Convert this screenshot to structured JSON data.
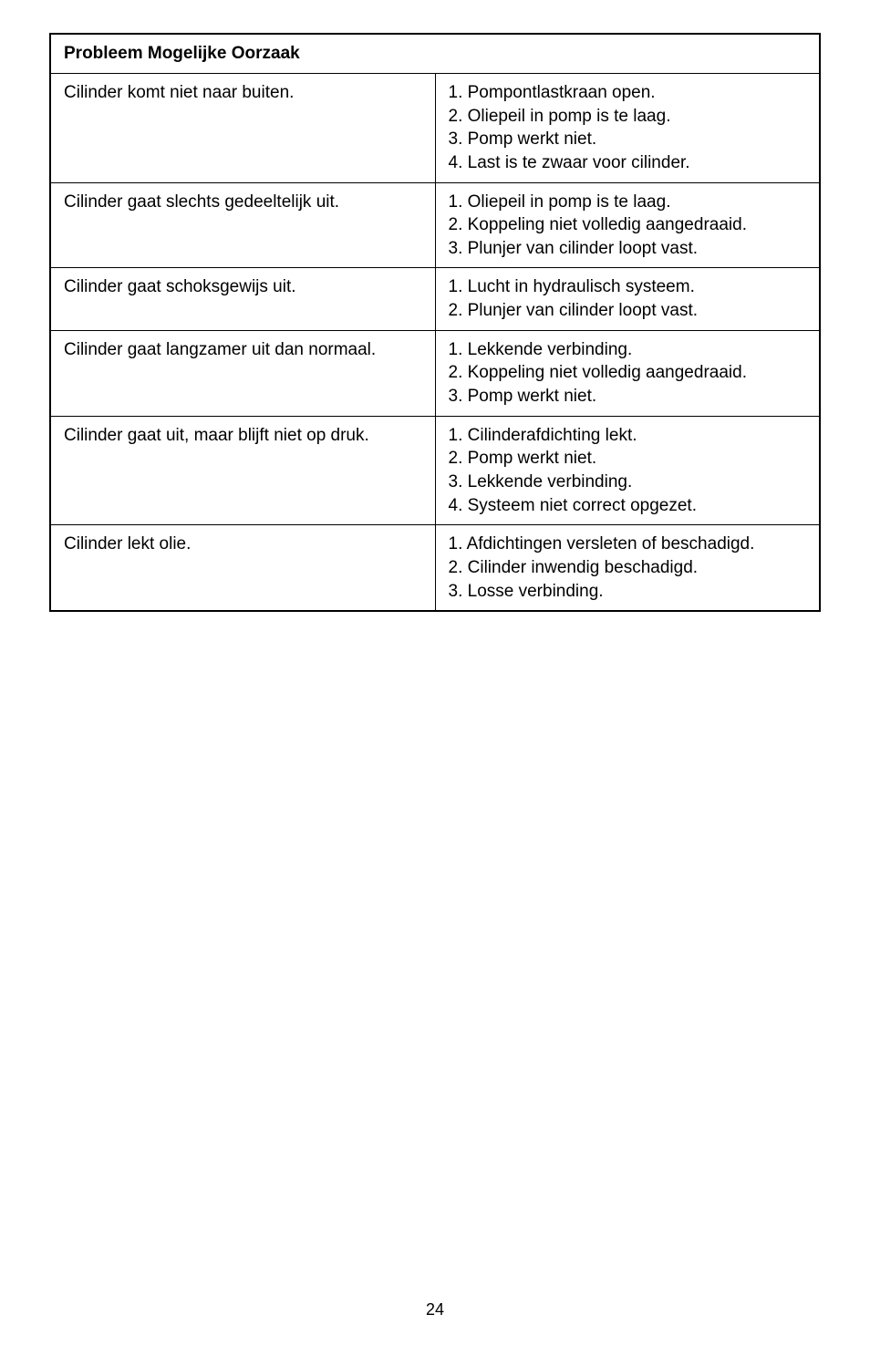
{
  "table": {
    "header": "Probleem Mogelijke Oorzaak",
    "rows": [
      {
        "problem": "Cilinder komt niet naar buiten.",
        "causes": [
          "1. Pompontlastkraan open.",
          "2. Oliepeil in pomp is te laag.",
          "3. Pomp werkt niet.",
          "4. Last is te zwaar voor cilinder."
        ]
      },
      {
        "problem": "Cilinder gaat slechts gedeeltelijk uit.",
        "causes": [
          "1. Oliepeil in pomp is te laag.",
          "2. Koppeling niet volledig aangedraaid.",
          "3. Plunjer van cilinder loopt vast."
        ]
      },
      {
        "problem": "Cilinder gaat schoksgewijs uit.",
        "causes": [
          "1. Lucht in hydraulisch systeem.",
          "2. Plunjer van cilinder loopt vast."
        ]
      },
      {
        "problem": "Cilinder gaat langzamer uit dan normaal.",
        "causes": [
          "1. Lekkende verbinding.",
          "2. Koppeling niet volledig aangedraaid.",
          "3. Pomp werkt niet."
        ]
      },
      {
        "problem": "Cilinder gaat uit, maar blijft niet op druk.",
        "causes": [
          "1. Cilinderafdichting lekt.",
          "2. Pomp werkt niet.",
          "3. Lekkende verbinding.",
          "4. Systeem niet correct opgezet."
        ]
      },
      {
        "problem": "Cilinder lekt olie.",
        "causes": [
          "1. Afdichtingen versleten of beschadigd.",
          "2. Cilinder inwendig beschadigd.",
          "3. Losse verbinding."
        ]
      }
    ]
  },
  "page_number": "24"
}
